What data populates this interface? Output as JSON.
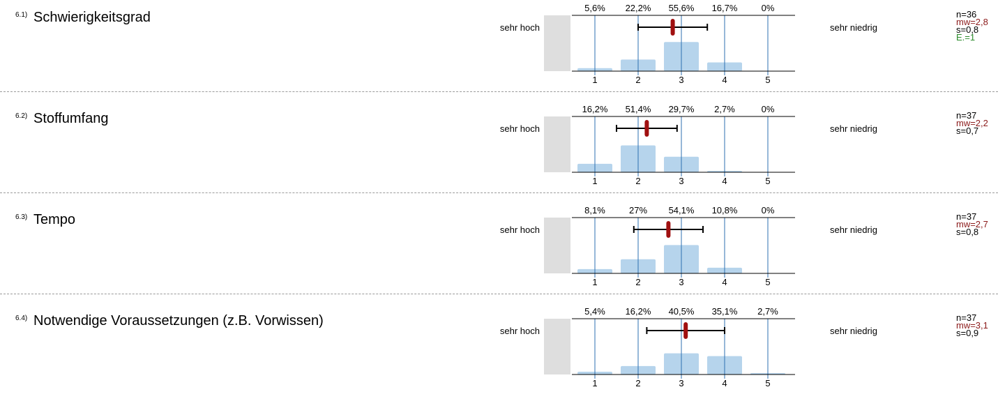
{
  "scale": {
    "left_label": "sehr hoch",
    "right_label": "sehr niedrig",
    "ticks": [
      "1",
      "2",
      "3",
      "4",
      "5"
    ]
  },
  "colors": {
    "bar": "#b6d4ec",
    "gridline": "#2d6fb0",
    "mean_marker": "#a01010",
    "side_panel": "#dedede",
    "mw_text": "#8b1a1a",
    "e_text": "#2a8a2a"
  },
  "questions": [
    {
      "number": "6.1)",
      "title": "Schwierigkeitsgrad",
      "n": "n=36",
      "mw": "mw=2,8",
      "s": "s=0,8",
      "e": "E.=1"
    },
    {
      "number": "6.2)",
      "title": "Stoffumfang",
      "n": "n=37",
      "mw": "mw=2,2",
      "s": "s=0,7"
    },
    {
      "number": "6.3)",
      "title": "Tempo",
      "n": "n=37",
      "mw": "mw=2,7",
      "s": "s=0,8"
    },
    {
      "number": "6.4)",
      "title": "Notwendige Voraussetzungen (z.B. Vorwissen)",
      "n": "n=37",
      "mw": "mw=3,1",
      "s": "s=0,9"
    }
  ],
  "chart_data": [
    {
      "type": "bar",
      "categories": [
        "1",
        "2",
        "3",
        "4",
        "5"
      ],
      "values": [
        5.6,
        22.2,
        55.6,
        16.7,
        0
      ],
      "value_labels": [
        "5,6%",
        "22,2%",
        "55,6%",
        "16,7%",
        "0%"
      ],
      "mean": 2.8,
      "sd": 0.8
    },
    {
      "type": "bar",
      "categories": [
        "1",
        "2",
        "3",
        "4",
        "5"
      ],
      "values": [
        16.2,
        51.4,
        29.7,
        2.7,
        0
      ],
      "value_labels": [
        "16,2%",
        "51,4%",
        "29,7%",
        "2,7%",
        "0%"
      ],
      "mean": 2.2,
      "sd": 0.7
    },
    {
      "type": "bar",
      "categories": [
        "1",
        "2",
        "3",
        "4",
        "5"
      ],
      "values": [
        8.1,
        27,
        54.1,
        10.8,
        0
      ],
      "value_labels": [
        "8,1%",
        "27%",
        "54,1%",
        "10,8%",
        "0%"
      ],
      "mean": 2.7,
      "sd": 0.8
    },
    {
      "type": "bar",
      "categories": [
        "1",
        "2",
        "3",
        "4",
        "5"
      ],
      "values": [
        5.4,
        16.2,
        40.5,
        35.1,
        2.7
      ],
      "value_labels": [
        "5,4%",
        "16,2%",
        "40,5%",
        "35,1%",
        "2,7%"
      ],
      "mean": 3.1,
      "sd": 0.9
    }
  ]
}
